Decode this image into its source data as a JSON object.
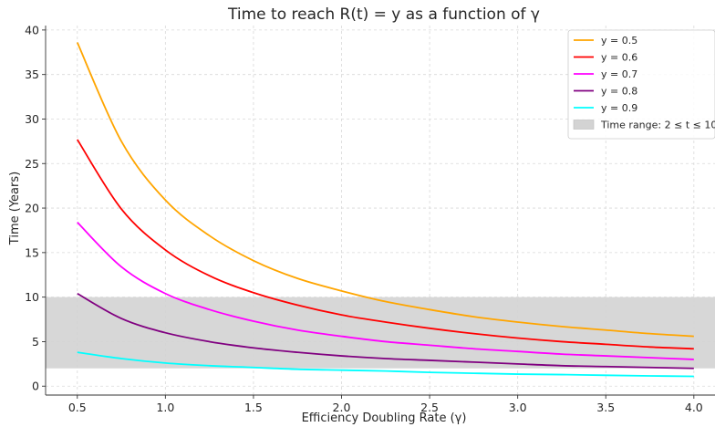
{
  "chart_data": {
    "type": "line",
    "title": "Time to reach R(t) = y as a function of γ",
    "xlabel": "Efficiency Doubling Rate (γ)",
    "ylabel": "Time (Years)",
    "xlim": [
      0.32,
      4.12
    ],
    "ylim": [
      -1.0,
      40.5
    ],
    "x_ticks": [
      0.5,
      1.0,
      1.5,
      2.0,
      2.5,
      3.0,
      3.5,
      4.0
    ],
    "x_tick_labels": [
      "0.5",
      "1.0",
      "1.5",
      "2.0",
      "2.5",
      "3.0",
      "3.5",
      "4.0"
    ],
    "y_ticks": [
      0,
      5,
      10,
      15,
      20,
      25,
      30,
      35,
      40
    ],
    "y_tick_labels": [
      "0",
      "5",
      "10",
      "15",
      "20",
      "25",
      "30",
      "35",
      "40"
    ],
    "grid": true,
    "legend_position": "top-right",
    "x": [
      0.5,
      0.75,
      1.0,
      1.25,
      1.5,
      1.75,
      2.0,
      2.25,
      2.5,
      2.75,
      3.0,
      3.25,
      3.5,
      3.75,
      4.0
    ],
    "series": [
      {
        "name": "y = 0.5",
        "color": "#ffa500",
        "values": [
          38.6,
          27.5,
          20.9,
          16.9,
          14.1,
          12.1,
          10.7,
          9.5,
          8.6,
          7.8,
          7.2,
          6.7,
          6.3,
          5.9,
          5.6
        ]
      },
      {
        "name": "y = 0.6",
        "color": "#ff0000",
        "values": [
          27.7,
          19.9,
          15.3,
          12.4,
          10.5,
          9.1,
          8.0,
          7.2,
          6.5,
          5.9,
          5.4,
          5.0,
          4.7,
          4.4,
          4.2
        ]
      },
      {
        "name": "y = 0.7",
        "color": "#ff00ff",
        "values": [
          18.4,
          13.4,
          10.4,
          8.6,
          7.3,
          6.3,
          5.6,
          5.0,
          4.6,
          4.2,
          3.9,
          3.6,
          3.4,
          3.2,
          3.0
        ]
      },
      {
        "name": "y = 0.8",
        "color": "#800080",
        "values": [
          10.4,
          7.6,
          6.0,
          5.0,
          4.3,
          3.8,
          3.4,
          3.1,
          2.9,
          2.7,
          2.5,
          2.3,
          2.2,
          2.1,
          2.0
        ]
      },
      {
        "name": "y = 0.9",
        "color": "#00ffff",
        "values": [
          3.8,
          3.1,
          2.6,
          2.3,
          2.1,
          1.9,
          1.8,
          1.7,
          1.55,
          1.45,
          1.35,
          1.3,
          1.22,
          1.15,
          1.1
        ]
      }
    ],
    "shaded_band": {
      "name": "Time range: 2 ≤ t ≤ 10",
      "y_min": 2,
      "y_max": 10,
      "color": "#d3d3d3"
    }
  }
}
